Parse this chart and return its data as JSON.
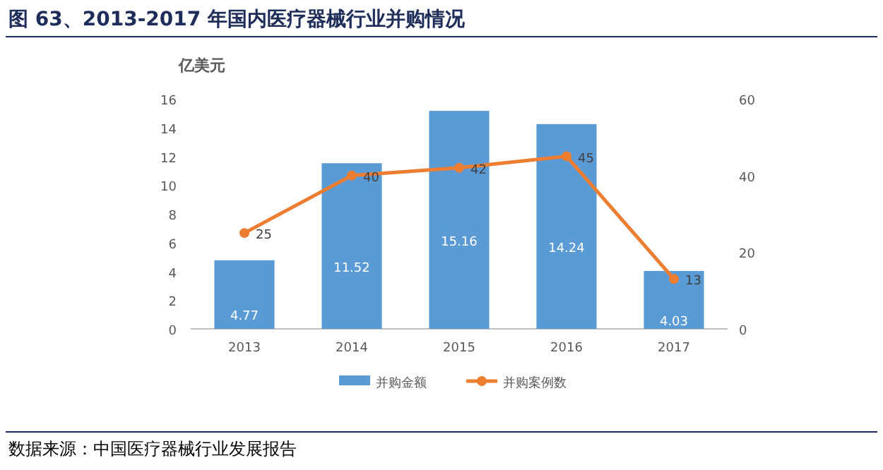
{
  "chart_data": {
    "type": "bar",
    "title": "图 63、2013-2017 年国内医疗器械行业并购情况",
    "ylabel": "亿美元",
    "categories": [
      "2013",
      "2014",
      "2015",
      "2016",
      "2017"
    ],
    "series": [
      {
        "name": "并购金额",
        "color": "#5b9bd5",
        "values": [
          4.77,
          11.52,
          15.16,
          14.24,
          4.03
        ]
      },
      {
        "name": "并购案例数",
        "type": "line",
        "axis": "y2",
        "color": "#ed7d31",
        "marker": "circle",
        "values": [
          25,
          40,
          42,
          45,
          13
        ]
      }
    ],
    "ylim": [
      0,
      16
    ],
    "yticks": [
      0,
      2,
      4,
      6,
      8,
      10,
      12,
      14,
      16
    ],
    "y2lim": [
      0,
      60
    ],
    "y2ticks": [
      0,
      20,
      40,
      60
    ],
    "data_labels": true,
    "legend": "bottom",
    "annotations": [
      "数据来源：中国医疗器械行业发展报告"
    ]
  }
}
